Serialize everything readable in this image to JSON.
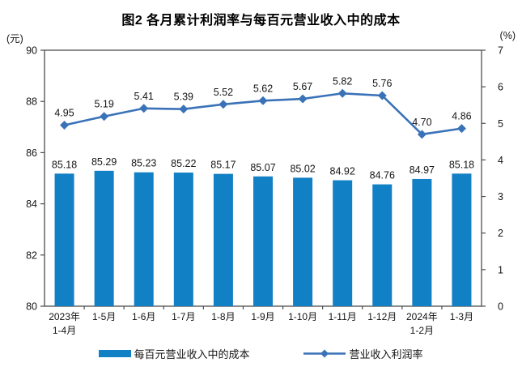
{
  "title": "图2 各月累计利润率与每百元营业收入中的成本",
  "colors": {
    "bar": "#1280C4",
    "line": "#3A72B8",
    "frame": "#4D4D4D",
    "text": "#151515"
  },
  "chart_data": {
    "type": "combo",
    "title": "图2 各月累计利润率与每百元营业收入中的成本",
    "categories": [
      "2023年\n1-4月",
      "1-5月",
      "1-6月",
      "1-7月",
      "1-8月",
      "1-9月",
      "1-10月",
      "1-11月",
      "1-12月",
      "2024年\n1-2月",
      "1-3月"
    ],
    "series": [
      {
        "name": "每百元营业收入中的成本",
        "type": "bar",
        "axis": "left",
        "values": [
          85.18,
          85.29,
          85.23,
          85.22,
          85.17,
          85.07,
          85.02,
          84.92,
          84.76,
          84.97,
          85.18
        ]
      },
      {
        "name": "营业收入利润率",
        "type": "line",
        "axis": "right",
        "values": [
          4.95,
          5.19,
          5.41,
          5.39,
          5.52,
          5.62,
          5.67,
          5.82,
          5.76,
          4.7,
          4.86
        ]
      }
    ],
    "left_axis": {
      "unit": "(元)",
      "min": 80,
      "max": 90,
      "ticks": [
        90,
        88,
        86,
        84,
        82,
        80
      ]
    },
    "right_axis": {
      "unit": "(%)",
      "min": 0,
      "max": 7,
      "ticks": [
        7,
        6,
        5,
        4,
        3,
        2,
        1,
        0
      ]
    },
    "legend_position": "bottom",
    "grid": false
  }
}
